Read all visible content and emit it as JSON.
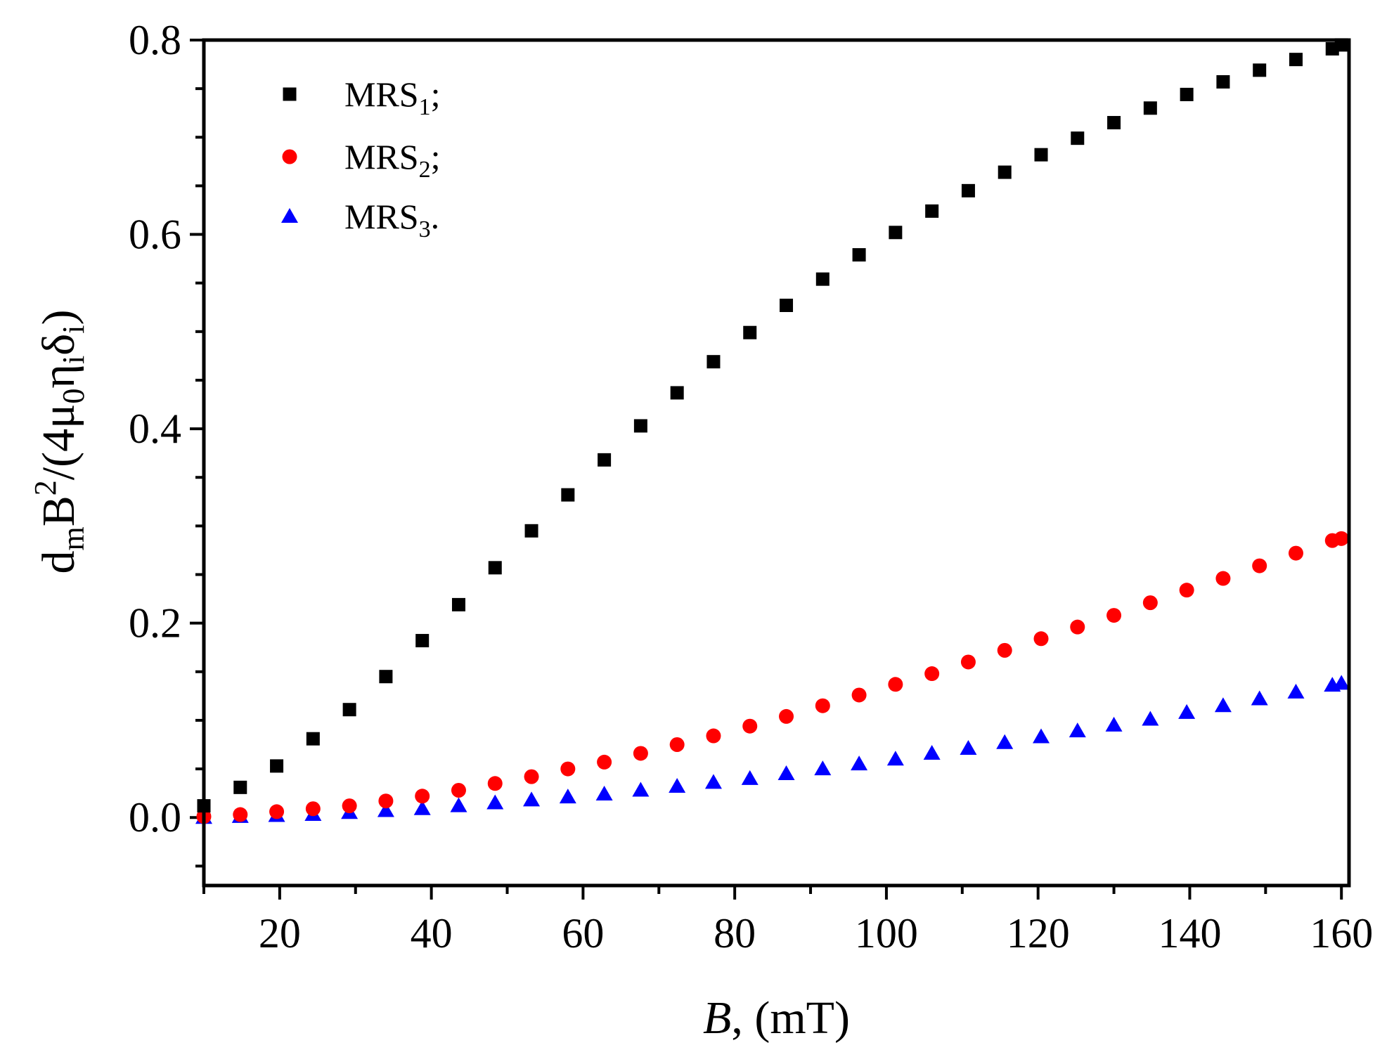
{
  "chart_data": {
    "type": "scatter",
    "xlabel": "B, (mT)",
    "xlabel_italic": "B",
    "xlabel_rest": ", (mT)",
    "ylabel_parts": {
      "p1": "d",
      "sub_m": "m",
      "p2": "B",
      "sup_2": "2",
      "p3": "/(4μ",
      "sub_0": "0",
      "p4": "η",
      "sub_i1": "i",
      "p5": "δ",
      "sub_i2": "i",
      "p6": ")"
    },
    "xlim": [
      10,
      161
    ],
    "ylim": [
      -0.07,
      0.8
    ],
    "xticks": [
      20,
      40,
      60,
      80,
      100,
      120,
      140,
      160
    ],
    "xtick_labels": [
      "20",
      "40",
      "60",
      "80",
      "100",
      "120",
      "140",
      "160"
    ],
    "xminor_step": 10,
    "yticks": [
      0.0,
      0.2,
      0.4,
      0.6,
      0.8
    ],
    "ytick_labels": [
      "0.0",
      "0.2",
      "0.4",
      "0.6",
      "0.8"
    ],
    "yminor_step": 0.05,
    "legend_position": "top-left",
    "x": [
      10,
      14.8,
      19.6,
      24.4,
      29.2,
      34,
      38.8,
      43.6,
      48.4,
      53.2,
      58,
      62.8,
      67.6,
      72.4,
      77.2,
      82,
      86.8,
      91.6,
      96.4,
      101.2,
      106,
      110.8,
      115.6,
      120.4,
      125.2,
      130,
      134.8,
      139.6,
      144.4,
      149.2,
      154,
      158.8,
      160
    ],
    "series": [
      {
        "name": "MRS",
        "sub": "1",
        "suffix": ";",
        "marker": "square",
        "color": "#000000",
        "values": [
          0.012,
          0.031,
          0.053,
          0.081,
          0.111,
          0.145,
          0.182,
          0.219,
          0.257,
          0.295,
          0.332,
          0.368,
          0.403,
          0.437,
          0.469,
          0.499,
          0.527,
          0.554,
          0.579,
          0.602,
          0.624,
          0.645,
          0.664,
          0.682,
          0.699,
          0.715,
          0.73,
          0.744,
          0.757,
          0.769,
          0.78,
          0.791,
          0.795
        ]
      },
      {
        "name": "MRS",
        "sub": "2",
        "suffix": ";",
        "marker": "circle",
        "color": "#ff0000",
        "values": [
          0.001,
          0.003,
          0.006,
          0.009,
          0.012,
          0.017,
          0.022,
          0.028,
          0.035,
          0.042,
          0.05,
          0.057,
          0.066,
          0.075,
          0.084,
          0.094,
          0.104,
          0.115,
          0.126,
          0.137,
          0.148,
          0.16,
          0.172,
          0.184,
          0.196,
          0.208,
          0.221,
          0.234,
          0.246,
          0.259,
          0.272,
          0.285,
          0.287
        ]
      },
      {
        "name": "MRS",
        "sub": "3",
        "suffix": ".",
        "marker": "triangle",
        "color": "#0000ff",
        "values": [
          0.0,
          0.001,
          0.002,
          0.003,
          0.005,
          0.007,
          0.009,
          0.012,
          0.015,
          0.018,
          0.021,
          0.024,
          0.028,
          0.032,
          0.036,
          0.04,
          0.045,
          0.05,
          0.055,
          0.06,
          0.066,
          0.071,
          0.077,
          0.083,
          0.089,
          0.095,
          0.101,
          0.108,
          0.115,
          0.122,
          0.129,
          0.136,
          0.138
        ]
      }
    ]
  }
}
